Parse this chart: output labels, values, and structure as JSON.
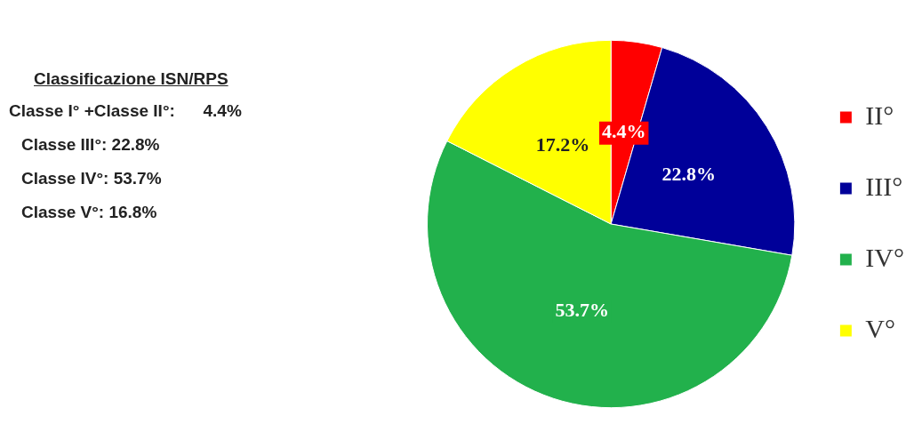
{
  "chart_data": {
    "type": "pie",
    "title": "Classificazione ISN/RPS",
    "categories": [
      "II°",
      "III°",
      "IV°",
      "V°"
    ],
    "values": [
      4.4,
      22.8,
      53.7,
      17.2
    ],
    "colors": [
      "#ff0000",
      "#000099",
      "#22b14c",
      "#ffff00"
    ],
    "value_labels": [
      "4.4%",
      "22.8%",
      "53.7%",
      "17.2%"
    ],
    "legend": "right",
    "annotations": [
      "Classe I° +Classe II°:      4.4%",
      "Classe III°: 22.8%",
      "Classe IV°: 53.7%",
      "Classe V°: 16.8%"
    ]
  }
}
